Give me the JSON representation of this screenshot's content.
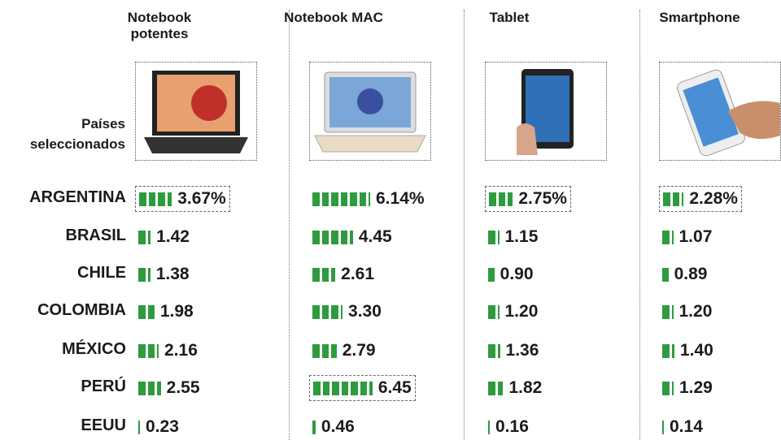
{
  "chart_data": {
    "type": "table-bars",
    "row_header": "Países seleccionados",
    "rows": [
      "ARGENTINA",
      "BRASIL",
      "CHILE",
      "COLOMBIA",
      "MÉXICO",
      "PERÚ",
      "EEUU"
    ],
    "color": "#2e9b3f",
    "series": [
      {
        "name": "Notebook potentes",
        "values": [
          3.67,
          1.42,
          1.38,
          1.98,
          2.16,
          2.55,
          0.23
        ],
        "value_labels": [
          "3.67%",
          "1.42",
          "1.38",
          "1.98",
          "2.16",
          "2.55",
          "0.23"
        ],
        "highlight_row": 0
      },
      {
        "name": "Notebook MAC",
        "values": [
          6.14,
          4.45,
          2.61,
          3.3,
          2.79,
          6.45,
          0.46
        ],
        "value_labels": [
          "6.14%",
          "4.45",
          "2.61",
          "3.30",
          "2.79",
          "6.45",
          "0.46"
        ],
        "highlight_row": 5
      },
      {
        "name": "Tablet",
        "values": [
          2.75,
          1.15,
          0.9,
          1.2,
          1.36,
          1.82,
          0.16
        ],
        "value_labels": [
          "2.75%",
          "1.15",
          "0.90",
          "1.20",
          "1.36",
          "1.82",
          "0.16"
        ],
        "highlight_row": 0
      },
      {
        "name": "Smartphone",
        "values": [
          2.28,
          1.07,
          0.89,
          1.2,
          1.4,
          1.29,
          0.14
        ],
        "value_labels": [
          "2.28%",
          "1.07",
          "0.89",
          "1.20",
          "1.40",
          "1.29",
          "0.14"
        ],
        "highlight_row": 0
      }
    ]
  }
}
